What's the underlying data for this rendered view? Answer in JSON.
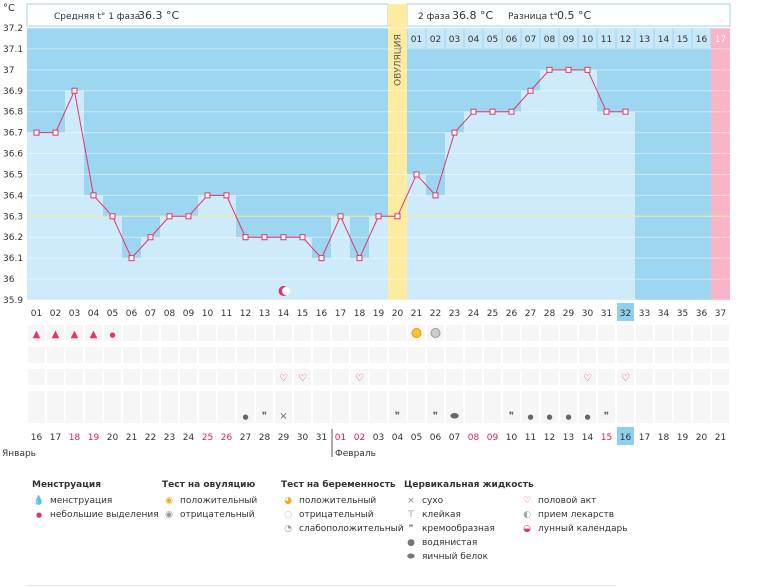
{
  "header": {
    "unit": "°C",
    "phase1_label": "Средняя t° 1 фаза",
    "phase1_value": "36.3 °C",
    "phase2_label": "2 фаза",
    "phase2_value": "36.8 °C",
    "diff_label": "Разница t°",
    "diff_value": "0.5 °C",
    "ovulation_label": "ОВУЛЯЦИЯ"
  },
  "chart_data": {
    "type": "line",
    "title": "",
    "ylabel": "°C",
    "ylim": [
      35.9,
      37.2
    ],
    "yticks": [
      "37.2",
      "37.1",
      "37",
      "36.9",
      "36.8",
      "36.7",
      "36.6",
      "36.5",
      "36.4",
      "36.3",
      "36.2",
      "36.1",
      "36",
      "35.9"
    ],
    "cycle_days": [
      "01",
      "02",
      "03",
      "04",
      "05",
      "06",
      "07",
      "08",
      "09",
      "10",
      "11",
      "12",
      "13",
      "14",
      "15",
      "16",
      "17",
      "18",
      "19",
      "20",
      "21",
      "22",
      "23",
      "24",
      "25",
      "26",
      "27",
      "28",
      "29",
      "30",
      "31",
      "32",
      "33",
      "34",
      "35",
      "36",
      "37"
    ],
    "temperatures": [
      36.7,
      36.7,
      36.9,
      36.4,
      36.3,
      36.1,
      36.2,
      36.3,
      36.3,
      36.4,
      36.4,
      36.2,
      36.2,
      36.2,
      36.2,
      36.1,
      36.3,
      36.1,
      36.3,
      36.3,
      36.5,
      36.4,
      36.7,
      36.8,
      36.8,
      36.8,
      36.9,
      37.0,
      37.0,
      37.0,
      36.8,
      36.8
    ],
    "coverline": 36.3,
    "ovulation_day": 20,
    "current_cycle_day": 32,
    "phase2_days": [
      "01",
      "02",
      "03",
      "04",
      "05",
      "06",
      "07",
      "08",
      "09",
      "10",
      "11",
      "12",
      "13",
      "14",
      "15",
      "16",
      "17"
    ],
    "phase2_highlight_last": "17",
    "calendar_dates": [
      "16",
      "17",
      "18",
      "19",
      "20",
      "21",
      "22",
      "23",
      "24",
      "25",
      "26",
      "27",
      "28",
      "29",
      "30",
      "31",
      "01",
      "02",
      "03",
      "04",
      "05",
      "06",
      "07",
      "08",
      "09",
      "10",
      "11",
      "12",
      "13",
      "14",
      "15",
      "16",
      "17",
      "18",
      "19",
      "20",
      "21"
    ],
    "red_date_indices": [
      2,
      3,
      9,
      10,
      16,
      17,
      23,
      24,
      30
    ],
    "today_date_index": 31,
    "months": [
      "Январь",
      "Февраль"
    ],
    "month_start_index": 16,
    "symbols": {
      "menstruation": [
        {
          "day": 1,
          "kind": "heavy"
        },
        {
          "day": 2,
          "kind": "heavy"
        },
        {
          "day": 3,
          "kind": "heavy"
        },
        {
          "day": 4,
          "kind": "heavy"
        },
        {
          "day": 5,
          "kind": "light"
        }
      ],
      "ovulation_test": [
        {
          "day": 21,
          "kind": "positive"
        },
        {
          "day": 22,
          "kind": "negative"
        }
      ],
      "intercourse": [
        14,
        15,
        18,
        30,
        32
      ],
      "moon": [
        14
      ],
      "cervical": [
        {
          "day": 12,
          "kind": "watery"
        },
        {
          "day": 13,
          "kind": "creamy"
        },
        {
          "day": 14,
          "kind": "dry"
        },
        {
          "day": 20,
          "kind": "creamy"
        },
        {
          "day": 22,
          "kind": "creamy"
        },
        {
          "day": 23,
          "kind": "eggwhite"
        },
        {
          "day": 26,
          "kind": "creamy"
        },
        {
          "day": 27,
          "kind": "watery"
        },
        {
          "day": 28,
          "kind": "watery"
        },
        {
          "day": 29,
          "kind": "watery"
        },
        {
          "day": 30,
          "kind": "watery"
        },
        {
          "day": 31,
          "kind": "creamy"
        }
      ]
    }
  },
  "legend": {
    "menstruation": {
      "title": "Менструация",
      "items": [
        "менструация",
        "небольшие выделения"
      ]
    },
    "ovulation_test": {
      "title": "Тест на овуляцию",
      "items": [
        "положительный",
        "отрицательный"
      ]
    },
    "pregnancy_test": {
      "title": "Тест на беременность",
      "items": [
        "положительный",
        "отрицательный",
        "слабоположительный"
      ]
    },
    "cervical": {
      "title": "Цервикальная жидкость",
      "items": [
        "сухо",
        "клейкая",
        "кремообразная",
        "водянистая",
        "яичный белок"
      ]
    },
    "other": {
      "items": [
        "половой акт",
        "прием лекарств",
        "лунный календарь"
      ]
    }
  },
  "colors": {
    "plot_bg": "#9cd6f0",
    "fill": "#cdebfb",
    "line": "#e0366a",
    "ovulation": "#fdeba0",
    "coverline": "#f2e690",
    "pink": "#f9b4c8",
    "today": "#8ed0ee",
    "red_text": "#d0245a"
  }
}
